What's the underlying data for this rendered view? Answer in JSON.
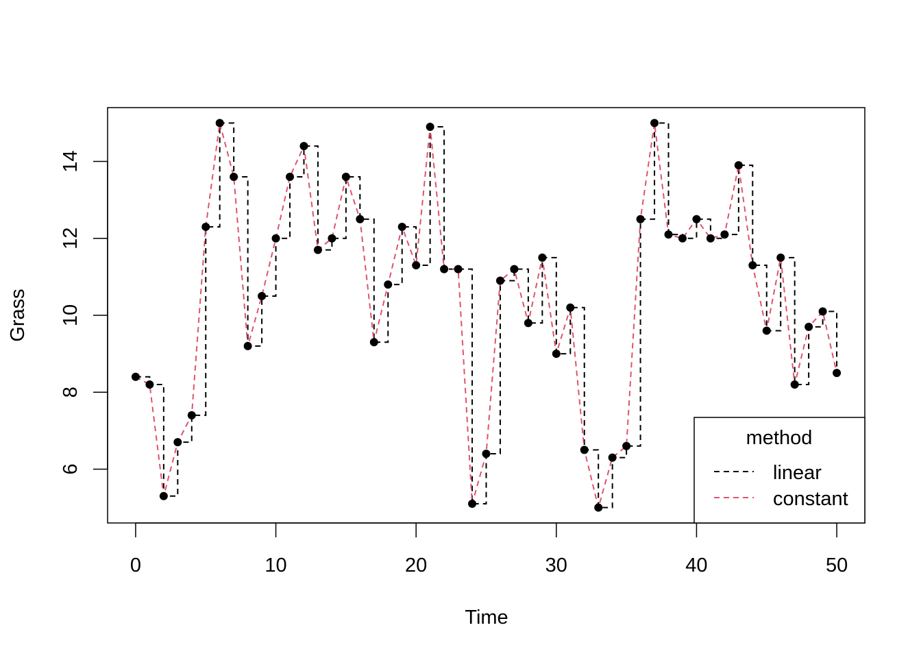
{
  "chart_data": {
    "type": "line",
    "title": "",
    "xlabel": "Time",
    "ylabel": "Grass",
    "xlim": [
      -2,
      52
    ],
    "ylim": [
      4.6,
      15.4
    ],
    "x_ticks": [
      0,
      10,
      20,
      30,
      40,
      50
    ],
    "y_ticks": [
      6,
      8,
      10,
      12,
      14
    ],
    "x": [
      0,
      1,
      2,
      3,
      4,
      5,
      6,
      7,
      8,
      9,
      10,
      11,
      12,
      13,
      14,
      15,
      16,
      17,
      18,
      19,
      20,
      21,
      22,
      23,
      24,
      25,
      26,
      27,
      28,
      29,
      30,
      31,
      32,
      33,
      34,
      35,
      36,
      37,
      38,
      39,
      40,
      41,
      42,
      43,
      44,
      45,
      46,
      47,
      48,
      49,
      50
    ],
    "y": [
      8.4,
      8.2,
      5.3,
      6.7,
      7.4,
      12.3,
      15.0,
      13.6,
      9.2,
      10.5,
      12.0,
      13.6,
      14.4,
      11.7,
      12.0,
      13.6,
      12.5,
      9.3,
      10.8,
      12.3,
      11.3,
      14.9,
      11.2,
      11.2,
      5.1,
      6.4,
      10.9,
      11.2,
      9.8,
      11.5,
      9.0,
      10.2,
      6.5,
      5.0,
      6.3,
      6.6,
      12.5,
      15.0,
      12.1,
      12.0,
      12.5,
      12.0,
      12.1,
      13.9,
      11.3,
      9.6,
      11.5,
      8.2,
      9.7,
      10.1,
      8.5
    ],
    "series": [
      {
        "name": "linear",
        "color": "#000000",
        "style": "dashed-step"
      },
      {
        "name": "constant",
        "color": "#DF536B",
        "style": "dashed-line"
      }
    ],
    "legend": {
      "title": "method",
      "placement": "bottom-right"
    }
  }
}
